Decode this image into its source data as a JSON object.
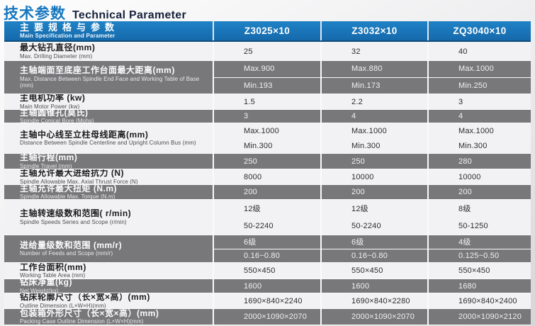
{
  "page": {
    "title_zh": "技术参数",
    "title_en": "Technical Parameter"
  },
  "table": {
    "header": {
      "label_zh": "主要规格与参数",
      "label_en": "Main Specification and Parameter",
      "columns": [
        "Z3025×10",
        "Z3032×10",
        "ZQ3040×10"
      ]
    },
    "rows": [
      {
        "zh": "最大钻孔直径(mm)",
        "en": "Max. Drilling Diameter (mm)",
        "values": [
          "25",
          "32",
          "40"
        ]
      },
      {
        "zh": "主轴端面至底座工作台面最大距离(mm)",
        "en": "Max. Distance Between Spindle End Face and Working Table of Base (mm)",
        "values": [
          [
            "Max.900",
            "Min.193"
          ],
          [
            "Max.880",
            "Min.173"
          ],
          [
            "Max.1000",
            "Min.250"
          ]
        ]
      },
      {
        "zh": "主电机功率 (kw)",
        "en": "Main Motor Power (kw)",
        "values": [
          "1.5",
          "2.2",
          "3"
        ]
      },
      {
        "zh": "主轴圆锥孔(莫氏)",
        "en": "Spindle Conical Bore (Mohs)",
        "values": [
          "3",
          "4",
          "4"
        ]
      },
      {
        "zh": "主轴中心线至立柱母线距离(mm)",
        "en": "Distance Between Spindle Centerline and Upright Column Bus (mm)",
        "values": [
          [
            "Max.1000",
            "Min.300"
          ],
          [
            "Max.1000",
            "Min.300"
          ],
          [
            "Max.1000",
            "Min.300"
          ]
        ]
      },
      {
        "zh": "主轴行程(mm)",
        "en": "Spindle Travel (mm)",
        "values": [
          "250",
          "250",
          "280"
        ]
      },
      {
        "zh": "主轴允许最大进给抗力 (N)",
        "en": "Spindle Allowable Max. Axial Thrust Force (N)",
        "values": [
          "8000",
          "10000",
          "10000"
        ]
      },
      {
        "zh": "主轴允许最大扭矩 (N.m)",
        "en": "Spindle Allowable Max. Torque (N.m)",
        "values": [
          "200",
          "200",
          "200"
        ]
      },
      {
        "zh": "主轴转速级数和范围( r/min)",
        "en": "Spindle Speeds Series and Scope (r/min)",
        "values": [
          [
            "12级",
            "50-2240"
          ],
          [
            "12级",
            "50-2240"
          ],
          [
            "8级",
            "50-1250"
          ]
        ]
      },
      {
        "zh": "进给量级数和范围 (mm/r)",
        "en": "Number of Feeds and Scope (mm/r)",
        "values": [
          [
            "6级",
            "0.16~0.80"
          ],
          [
            "6级",
            "0.16~0.80"
          ],
          [
            "4级",
            "0.125~0.50"
          ]
        ]
      },
      {
        "zh": "工作台面积(mm)",
        "en": "Working Table Area (mm)",
        "values": [
          "550×450",
          "550×450",
          "550×450"
        ]
      },
      {
        "zh": "钻床净重(kg)",
        "en": "Net Weight(kg)",
        "values": [
          "1600",
          "1600",
          "1680"
        ]
      },
      {
        "zh": "钻床轮廓尺寸（长×宽×高）(mm)",
        "en": "Outline Dimension (L×W×H)(mm)",
        "values": [
          "1690×840×2240",
          "1690×840×2280",
          "1690×840×2400"
        ]
      },
      {
        "zh": "包装箱外形尺寸（长×宽×高）(mm)",
        "en": "Packing Case Outline Dimension (L×W×H)(mm)",
        "values": [
          "2000×1090×2070",
          "2000×1090×2070",
          "2000×1090×2120"
        ]
      }
    ],
    "colors": {
      "header_blue": "#1a76bb",
      "title_blue": "#1778c0",
      "title_dark": "#17233d",
      "dark_row": "#78787b",
      "light_row": "#f2f2f4"
    }
  }
}
